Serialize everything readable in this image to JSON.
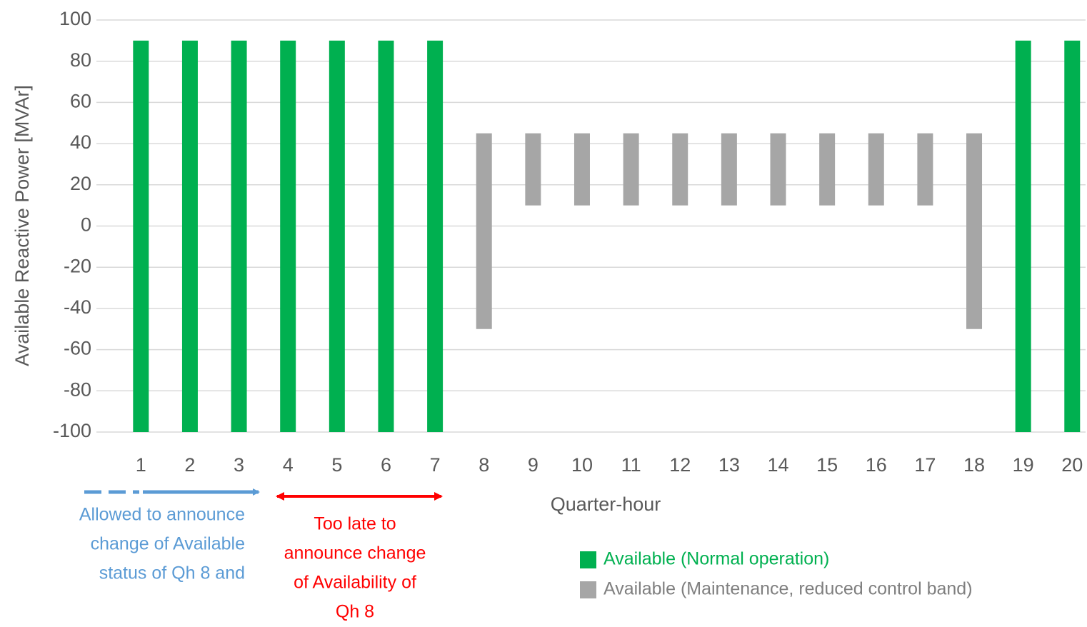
{
  "chart_data": {
    "type": "range-bar",
    "categories": [
      "1",
      "2",
      "3",
      "4",
      "5",
      "6",
      "7",
      "8",
      "9",
      "10",
      "11",
      "12",
      "13",
      "14",
      "15",
      "16",
      "17",
      "18",
      "19",
      "20"
    ],
    "x_label": "Quarter-hour",
    "y_label": "Available Reactive Power [MVAr]",
    "ylim": [
      -100,
      100
    ],
    "yticks": [
      -100,
      -80,
      -60,
      -40,
      -20,
      0,
      20,
      40,
      60,
      80,
      100
    ],
    "grid": true,
    "series": [
      {
        "name": "Available (Normal operation)",
        "color": "#00b050",
        "low": [
          -100,
          -100,
          -100,
          -100,
          -100,
          -100,
          -100,
          null,
          null,
          null,
          null,
          null,
          null,
          null,
          null,
          null,
          null,
          null,
          -100,
          -100
        ],
        "high": [
          90,
          90,
          90,
          90,
          90,
          90,
          90,
          null,
          null,
          null,
          null,
          null,
          null,
          null,
          null,
          null,
          null,
          null,
          90,
          90
        ]
      },
      {
        "name": "Available (Maintenance, reduced control band)",
        "color": "#a6a6a6",
        "low": [
          null,
          null,
          null,
          null,
          null,
          null,
          null,
          -50,
          10,
          10,
          10,
          10,
          10,
          10,
          10,
          10,
          10,
          -50,
          null,
          null
        ],
        "high": [
          null,
          null,
          null,
          null,
          null,
          null,
          null,
          45,
          45,
          45,
          45,
          45,
          45,
          45,
          45,
          45,
          45,
          45,
          null,
          null
        ]
      }
    ],
    "annotations": [
      {
        "text": [
          "Allowed to announce",
          "change of Available",
          "status of Qh 8 and"
        ],
        "color": "#5b9bd5"
      },
      {
        "text": [
          "Too late to",
          "announce change",
          "of Availability of",
          "Qh 8"
        ],
        "color": "#ff0000"
      }
    ]
  }
}
